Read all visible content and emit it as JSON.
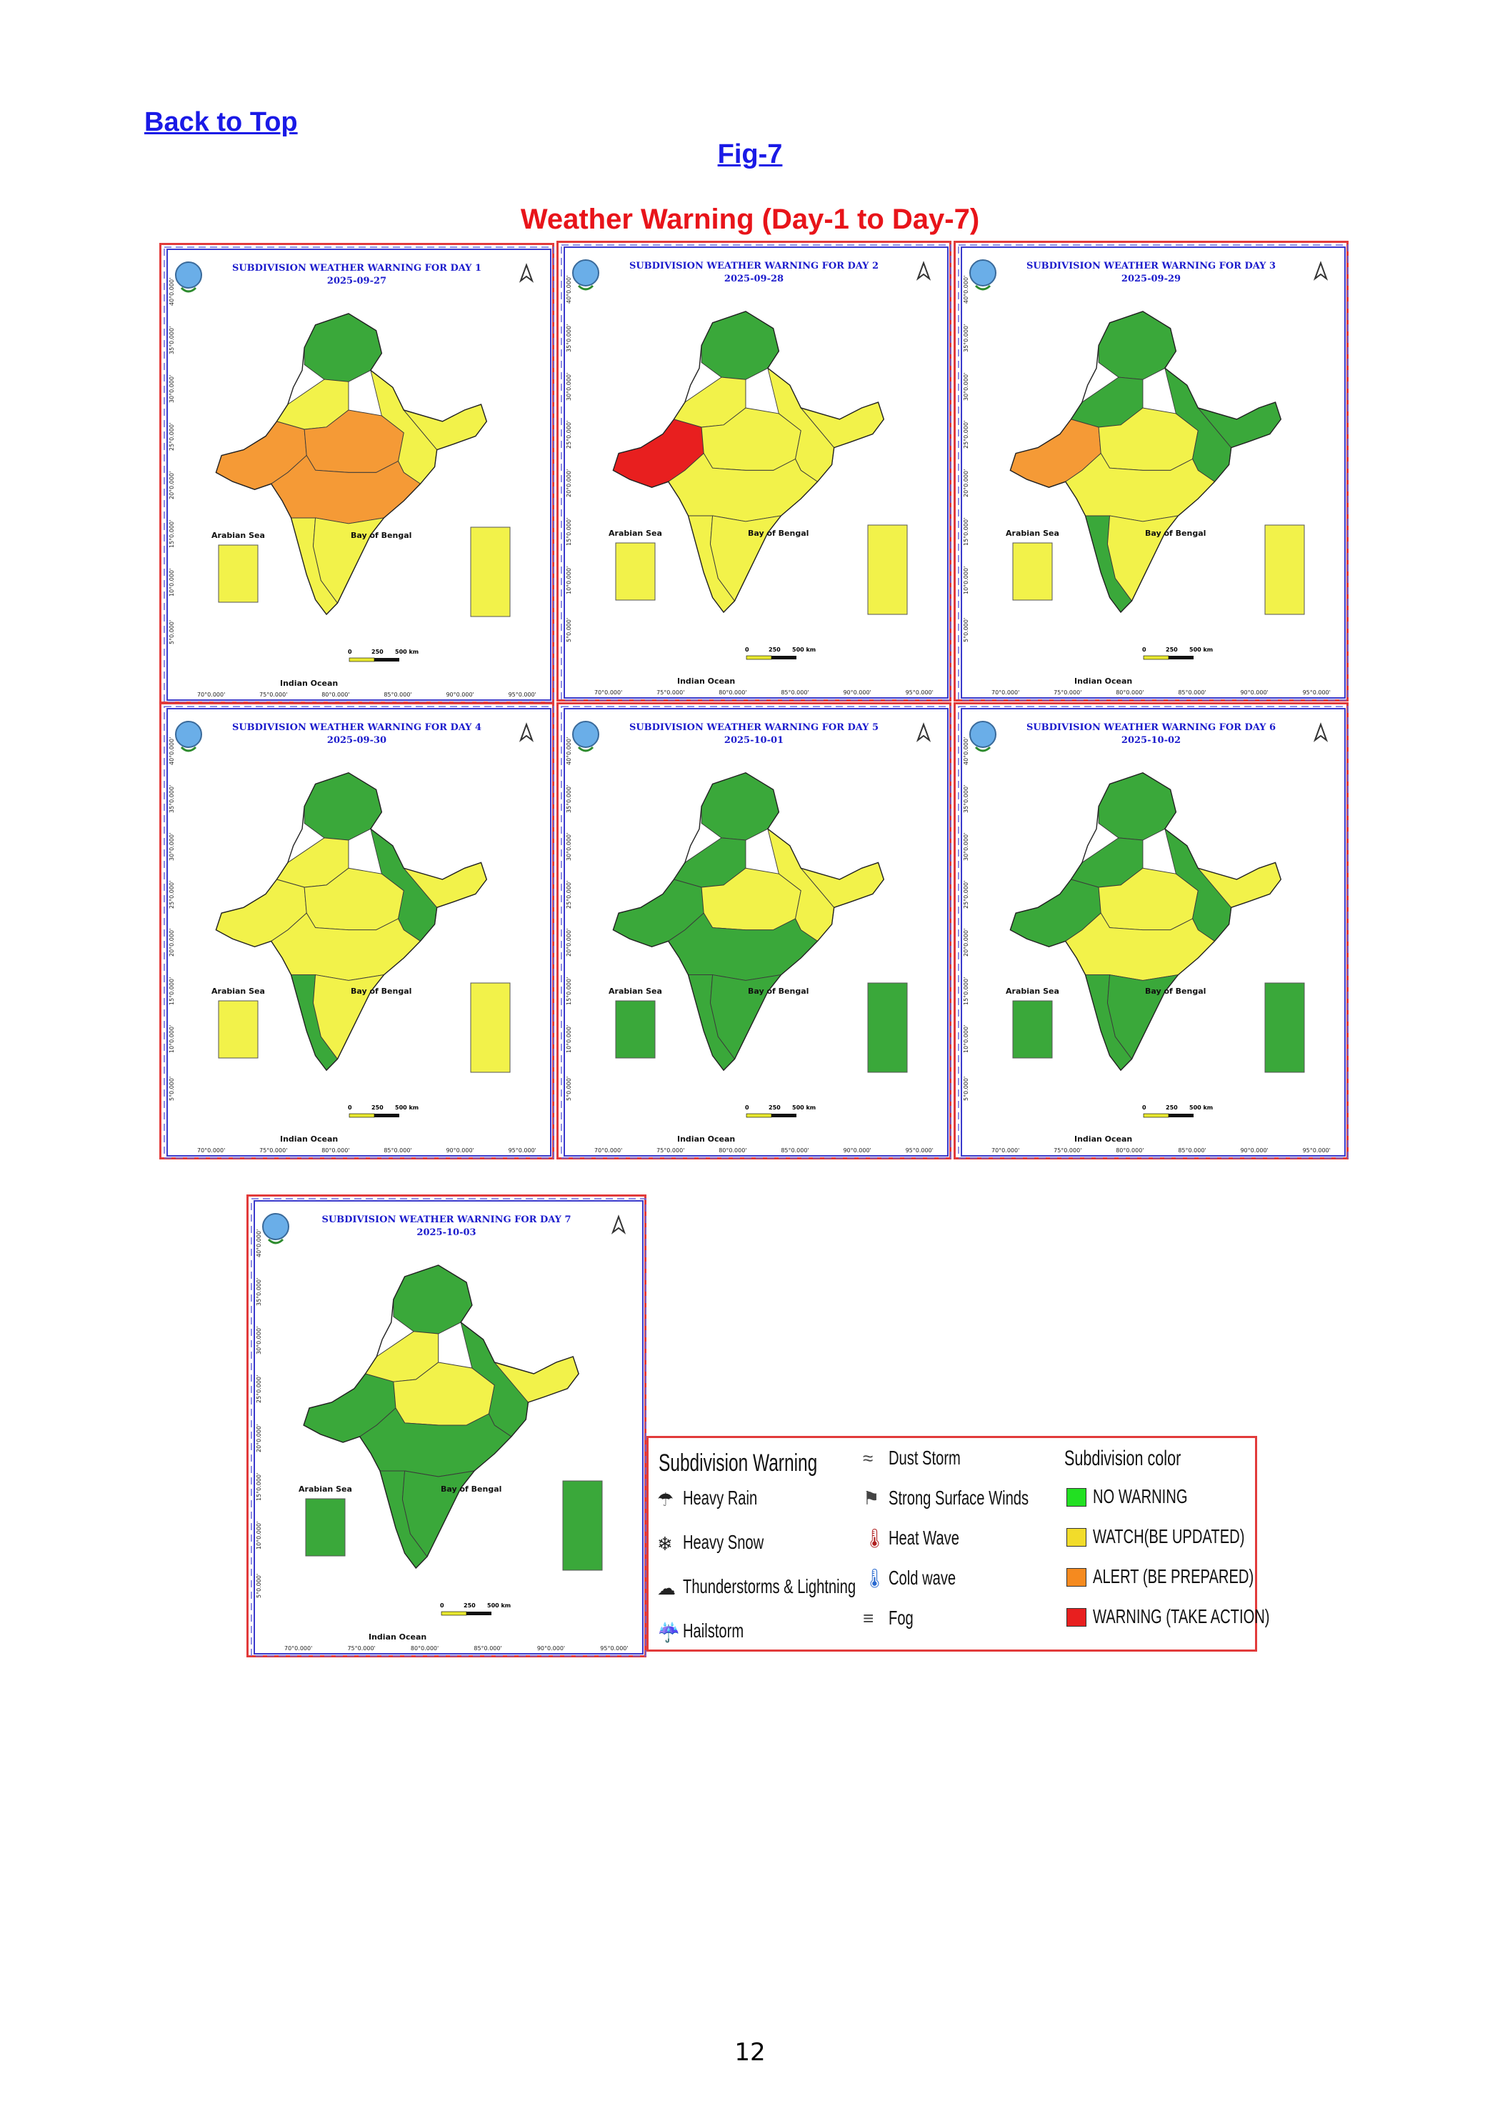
{
  "header": {
    "back_link": "Back to Top",
    "fig_label": "Fig-7",
    "title": "Weather Warning (Day-1 to Day-7)"
  },
  "colors": {
    "no_warning": "#22e022",
    "green_map": "#3aa83a",
    "watch": "#f2f24a",
    "alert": "#f59a36",
    "warning": "#e81f1f",
    "title_red": "#e8141a",
    "link_blue": "#1a1ae6"
  },
  "panel_common": {
    "arabian_sea": "Arabian Sea",
    "bay_of_bengal": "Bay of Bengal",
    "indian_ocean": "Indian Ocean",
    "scale_labels": [
      "0",
      "250",
      "500 km"
    ],
    "lon_labels": [
      "70°0.000'",
      "75°0.000'",
      "80°0.000'",
      "85°0.000'",
      "90°0.000'",
      "95°0.000'"
    ],
    "lat_labels": [
      "40°0.000'",
      "35°0.000'",
      "30°0.000'",
      "25°0.000'",
      "20°0.000'",
      "15°0.000'",
      "10°0.000'",
      "5°0.000'"
    ]
  },
  "panels": [
    {
      "title": "SUBDIVISION WEATHER WARNING FOR DAY 1",
      "date": "2025-09-27",
      "scheme": "day1",
      "islands": "watch"
    },
    {
      "title": "SUBDIVISION WEATHER WARNING FOR DAY 2",
      "date": "2025-09-28",
      "scheme": "day2",
      "islands": "watch"
    },
    {
      "title": "SUBDIVISION WEATHER WARNING FOR DAY 3",
      "date": "2025-09-29",
      "scheme": "day3",
      "islands": "watch"
    },
    {
      "title": "SUBDIVISION WEATHER WARNING FOR DAY 4",
      "date": "2025-09-30",
      "scheme": "day4",
      "islands": "watch"
    },
    {
      "title": "SUBDIVISION WEATHER WARNING FOR DAY 5",
      "date": "2025-10-01",
      "scheme": "day5",
      "islands": "green"
    },
    {
      "title": "SUBDIVISION WEATHER WARNING FOR DAY 6",
      "date": "2025-10-02",
      "scheme": "day6",
      "islands": "green"
    },
    {
      "title": "SUBDIVISION WEATHER WARNING FOR DAY 7",
      "date": "2025-10-03",
      "scheme": "day7",
      "islands": "green"
    }
  ],
  "legend": {
    "warning_heading": "Subdivision Warning",
    "color_heading": "Subdivision color",
    "warnings_col1": [
      {
        "label": "Heavy Rain",
        "icon": "heavy-rain-icon",
        "glyph": "☂"
      },
      {
        "label": "Heavy Snow",
        "icon": "heavy-snow-icon",
        "glyph": "❄"
      },
      {
        "label": "Thunderstorms & Lightning",
        "icon": "thunderstorm-icon",
        "glyph": "☁"
      },
      {
        "label": "Hailstorm",
        "icon": "hailstorm-icon",
        "glyph": "☔"
      }
    ],
    "warnings_col2": [
      {
        "label": "Dust Storm",
        "icon": "dust-storm-icon",
        "glyph": "≈"
      },
      {
        "label": "Strong Surface Winds",
        "icon": "strong-wind-icon",
        "glyph": "⚑"
      },
      {
        "label": "Heat Wave",
        "icon": "heat-wave-icon",
        "glyph": "🌡"
      },
      {
        "label": "Cold wave",
        "icon": "cold-wave-icon",
        "glyph": "🌡"
      },
      {
        "label": "Fog",
        "icon": "fog-icon",
        "glyph": "≡"
      }
    ],
    "colors": [
      {
        "label": "NO WARNING",
        "color": "#22e022"
      },
      {
        "label": "WATCH(BE UPDATED)",
        "color": "#f2dc2a"
      },
      {
        "label": "ALERT (BE PREPARED)",
        "color": "#f58a1f"
      },
      {
        "label": "WARNING (TAKE ACTION)",
        "color": "#e81f1f"
      }
    ]
  },
  "page_number": "12"
}
